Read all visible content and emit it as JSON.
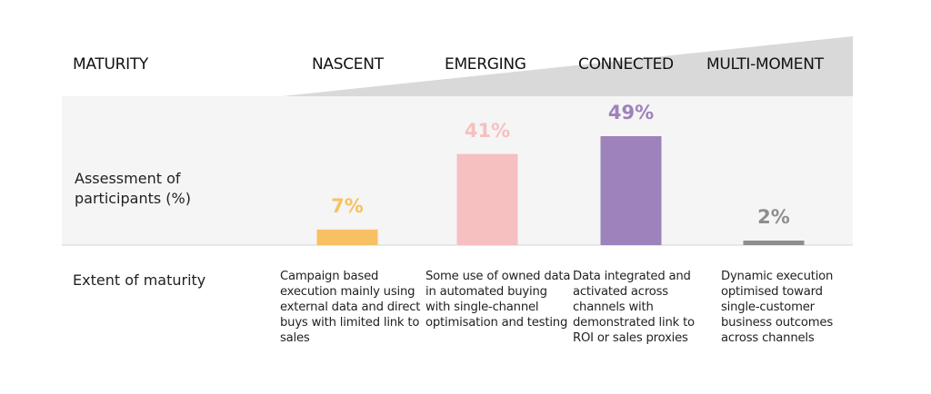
{
  "header": {
    "maturity_label": "MATURITY"
  },
  "row_labels": {
    "assessment": "Assessment of participants (%)",
    "extent": "Extent of maturity"
  },
  "chart_data": {
    "type": "bar",
    "title": "",
    "xlabel": "MATURITY",
    "ylabel": "Assessment of participants (%)",
    "categories": [
      "NASCENT",
      "EMERGING",
      "CONNECTED",
      "MULTI-MOMENT"
    ],
    "values": [
      7,
      41,
      49,
      2
    ],
    "value_labels": [
      "7%",
      "41%",
      "49%",
      "2%"
    ],
    "colors": [
      "#f7c163",
      "#f6c0c0",
      "#9d82bb",
      "#8e8e8e"
    ],
    "ylim": [
      0,
      50
    ],
    "grid": false,
    "legend": "none"
  },
  "descriptions": [
    "Campaign based execution mainly using external data and direct buys with limited link to sales",
    "Some use of owned data in automated buying with single-channel optimisation and testing",
    "Data integrated and activated across channels with demonstrated link to ROI or sales proxies",
    "Dynamic execution optimised toward single-customer business outcomes across channels"
  ],
  "colors": {
    "band": "#f5f5f5",
    "wedge": "#d9d9d9",
    "baseline": "#e0e0e0"
  }
}
